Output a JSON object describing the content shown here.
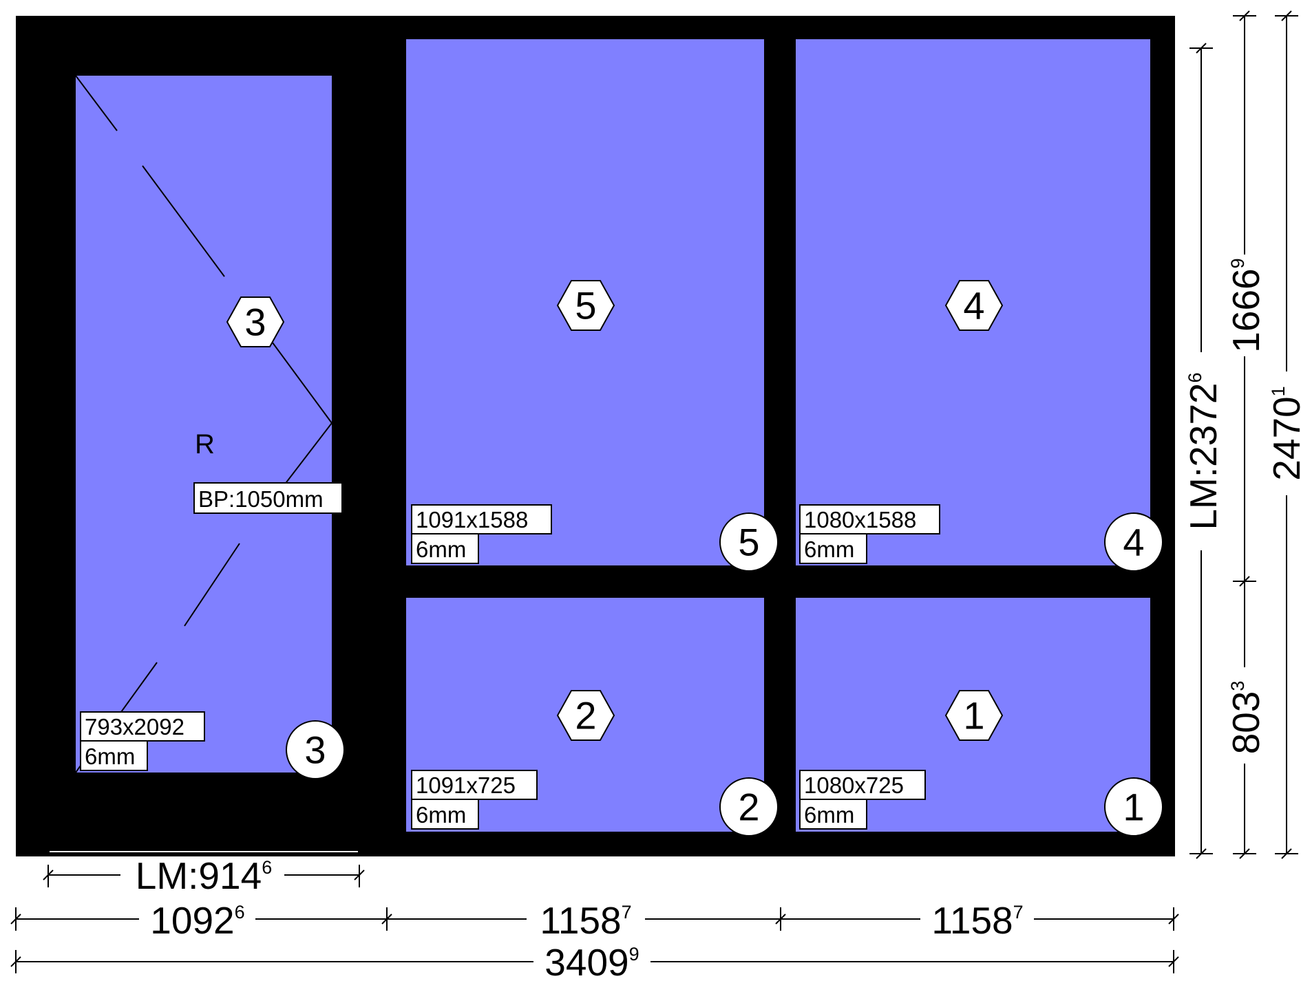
{
  "colors": {
    "frame": "#000000",
    "glass": "#8080ff",
    "label_bg": "#ffffff"
  },
  "panes": [
    {
      "id": "3",
      "size": "793x2092",
      "thickness": "6mm",
      "opening": "R",
      "handle_height": "BP:1050mm"
    },
    {
      "id": "5",
      "size": "1091x1588",
      "thickness": "6mm"
    },
    {
      "id": "4",
      "size": "1080x1588",
      "thickness": "6mm"
    },
    {
      "id": "2",
      "size": "1091x725",
      "thickness": "6mm"
    },
    {
      "id": "1",
      "size": "1080x725",
      "thickness": "6mm"
    }
  ],
  "dimensions": {
    "sash_light": {
      "main": "LM:914",
      "sup": "6"
    },
    "width_left": {
      "main": "1092",
      "sup": "6"
    },
    "width_middle": {
      "main": "1158",
      "sup": "7"
    },
    "width_right": {
      "main": "1158",
      "sup": "7"
    },
    "width_total": {
      "main": "3409",
      "sup": "9"
    },
    "height_light": {
      "main": "LM:2372",
      "sup": "6"
    },
    "height_upper": {
      "main": "1666",
      "sup": "9"
    },
    "height_lower": {
      "main": "803",
      "sup": "3"
    },
    "height_total": {
      "main": "2470",
      "sup": "1"
    }
  }
}
